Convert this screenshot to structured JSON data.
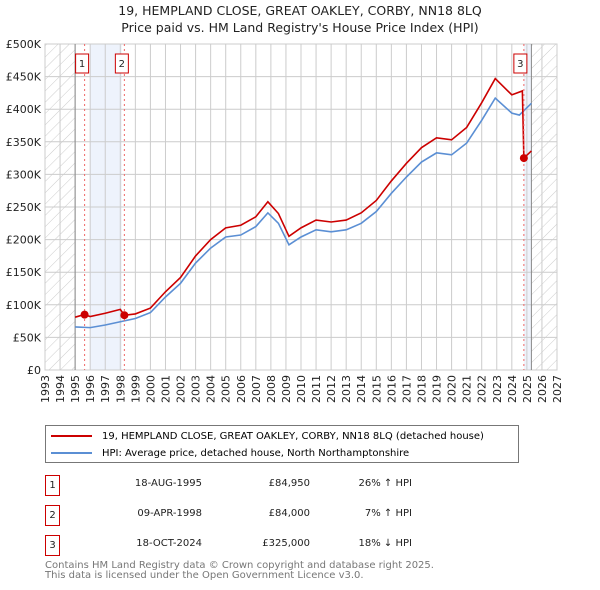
{
  "chart_data": {
    "type": "line",
    "title": "19, HEMPLAND CLOSE, GREAT OAKLEY, CORBY, NN18 8LQ",
    "subtitle": "Price paid vs. HM Land Registry's House Price Index (HPI)",
    "xlim": [
      1993,
      2027
    ],
    "ylim": [
      0,
      500000
    ],
    "x_ticks": [
      "1993",
      "1994",
      "1995",
      "1996",
      "1997",
      "1998",
      "1999",
      "2000",
      "2001",
      "2002",
      "2003",
      "2004",
      "2005",
      "2006",
      "2007",
      "2008",
      "2009",
      "2010",
      "2011",
      "2012",
      "2013",
      "2014",
      "2015",
      "2016",
      "2017",
      "2018",
      "2019",
      "2020",
      "2021",
      "2022",
      "2023",
      "2024",
      "2025",
      "2026",
      "2027"
    ],
    "y_ticks": [
      {
        "v": 0,
        "label": "£0"
      },
      {
        "v": 50000,
        "label": "£50K"
      },
      {
        "v": 100000,
        "label": "£100K"
      },
      {
        "v": 150000,
        "label": "£150K"
      },
      {
        "v": 200000,
        "label": "£200K"
      },
      {
        "v": 250000,
        "label": "£250K"
      },
      {
        "v": 300000,
        "label": "£300K"
      },
      {
        "v": 350000,
        "label": "£350K"
      },
      {
        "v": 400000,
        "label": "£400K"
      },
      {
        "v": 450000,
        "label": "£450K"
      },
      {
        "v": 500000,
        "label": "£500K"
      }
    ],
    "grid": true,
    "data_range": [
      1995,
      2025.3
    ],
    "series": [
      {
        "name": "19, HEMPLAND CLOSE, GREAT OAKLEY, CORBY, NN18 8LQ (detached house)",
        "color": "#cc0000",
        "x": [
          1995,
          1995.6,
          1996,
          1997,
          1998,
          1998.27,
          1999,
          2000,
          2001,
          2002,
          2003,
          2004,
          2005,
          2006,
          2007,
          2007.8,
          2008.5,
          2009.2,
          2010,
          2011,
          2012,
          2013,
          2014,
          2015,
          2016,
          2017,
          2018,
          2019,
          2020,
          2021,
          2022,
          2022.9,
          2024,
          2024.7,
          2024.8,
          2025.3
        ],
        "y": [
          81000,
          85000,
          82000,
          87000,
          93000,
          84000,
          86000,
          95000,
          120000,
          142000,
          175000,
          200000,
          218000,
          222000,
          235000,
          258000,
          240000,
          205000,
          218000,
          230000,
          227000,
          230000,
          241000,
          260000,
          290000,
          317000,
          341000,
          356000,
          353000,
          372000,
          410000,
          447000,
          422000,
          428000,
          325000,
          336000
        ]
      },
      {
        "name": "HPI: Average price, detached house, North Northamptonshire",
        "color": "#5b8fd4",
        "x": [
          1995,
          1996,
          1997,
          1998,
          1999,
          2000,
          2001,
          2002,
          2003,
          2004,
          2005,
          2006,
          2007,
          2007.8,
          2008.5,
          2009.2,
          2010,
          2011,
          2012,
          2013,
          2014,
          2015,
          2016,
          2017,
          2018,
          2019,
          2020,
          2021,
          2022,
          2022.9,
          2024,
          2024.5,
          2025.3
        ],
        "y": [
          66000,
          65000,
          69000,
          74000,
          79000,
          88000,
          112000,
          133000,
          164000,
          187000,
          204000,
          207000,
          220000,
          241000,
          225000,
          192000,
          204000,
          215000,
          212000,
          215000,
          225000,
          243000,
          271000,
          296000,
          319000,
          333000,
          330000,
          348000,
          383000,
          417000,
          394000,
          391000,
          409000
        ]
      }
    ],
    "sales": [
      {
        "label": "1",
        "x": 1995.63,
        "y": 84950,
        "date": "18-AUG-1995",
        "price": "£84,950",
        "hpi": "26% ↑ HPI"
      },
      {
        "label": "2",
        "x": 1998.27,
        "y": 84000,
        "date": "09-APR-1998",
        "price": "£84,000",
        "hpi": "7% ↑ HPI"
      },
      {
        "label": "3",
        "x": 2024.8,
        "y": 325000,
        "date": "18-OCT-2024",
        "price": "£325,000",
        "hpi": "18% ↓ HPI"
      }
    ],
    "shaded_periods": [
      [
        1996,
        1998.1
      ],
      [
        2024.8,
        2025.3
      ]
    ],
    "legend_position": "bottom"
  },
  "footer": {
    "line1": "Contains HM Land Registry data © Crown copyright and database right 2025.",
    "line2": "This data is licensed under the Open Government Licence v3.0."
  }
}
